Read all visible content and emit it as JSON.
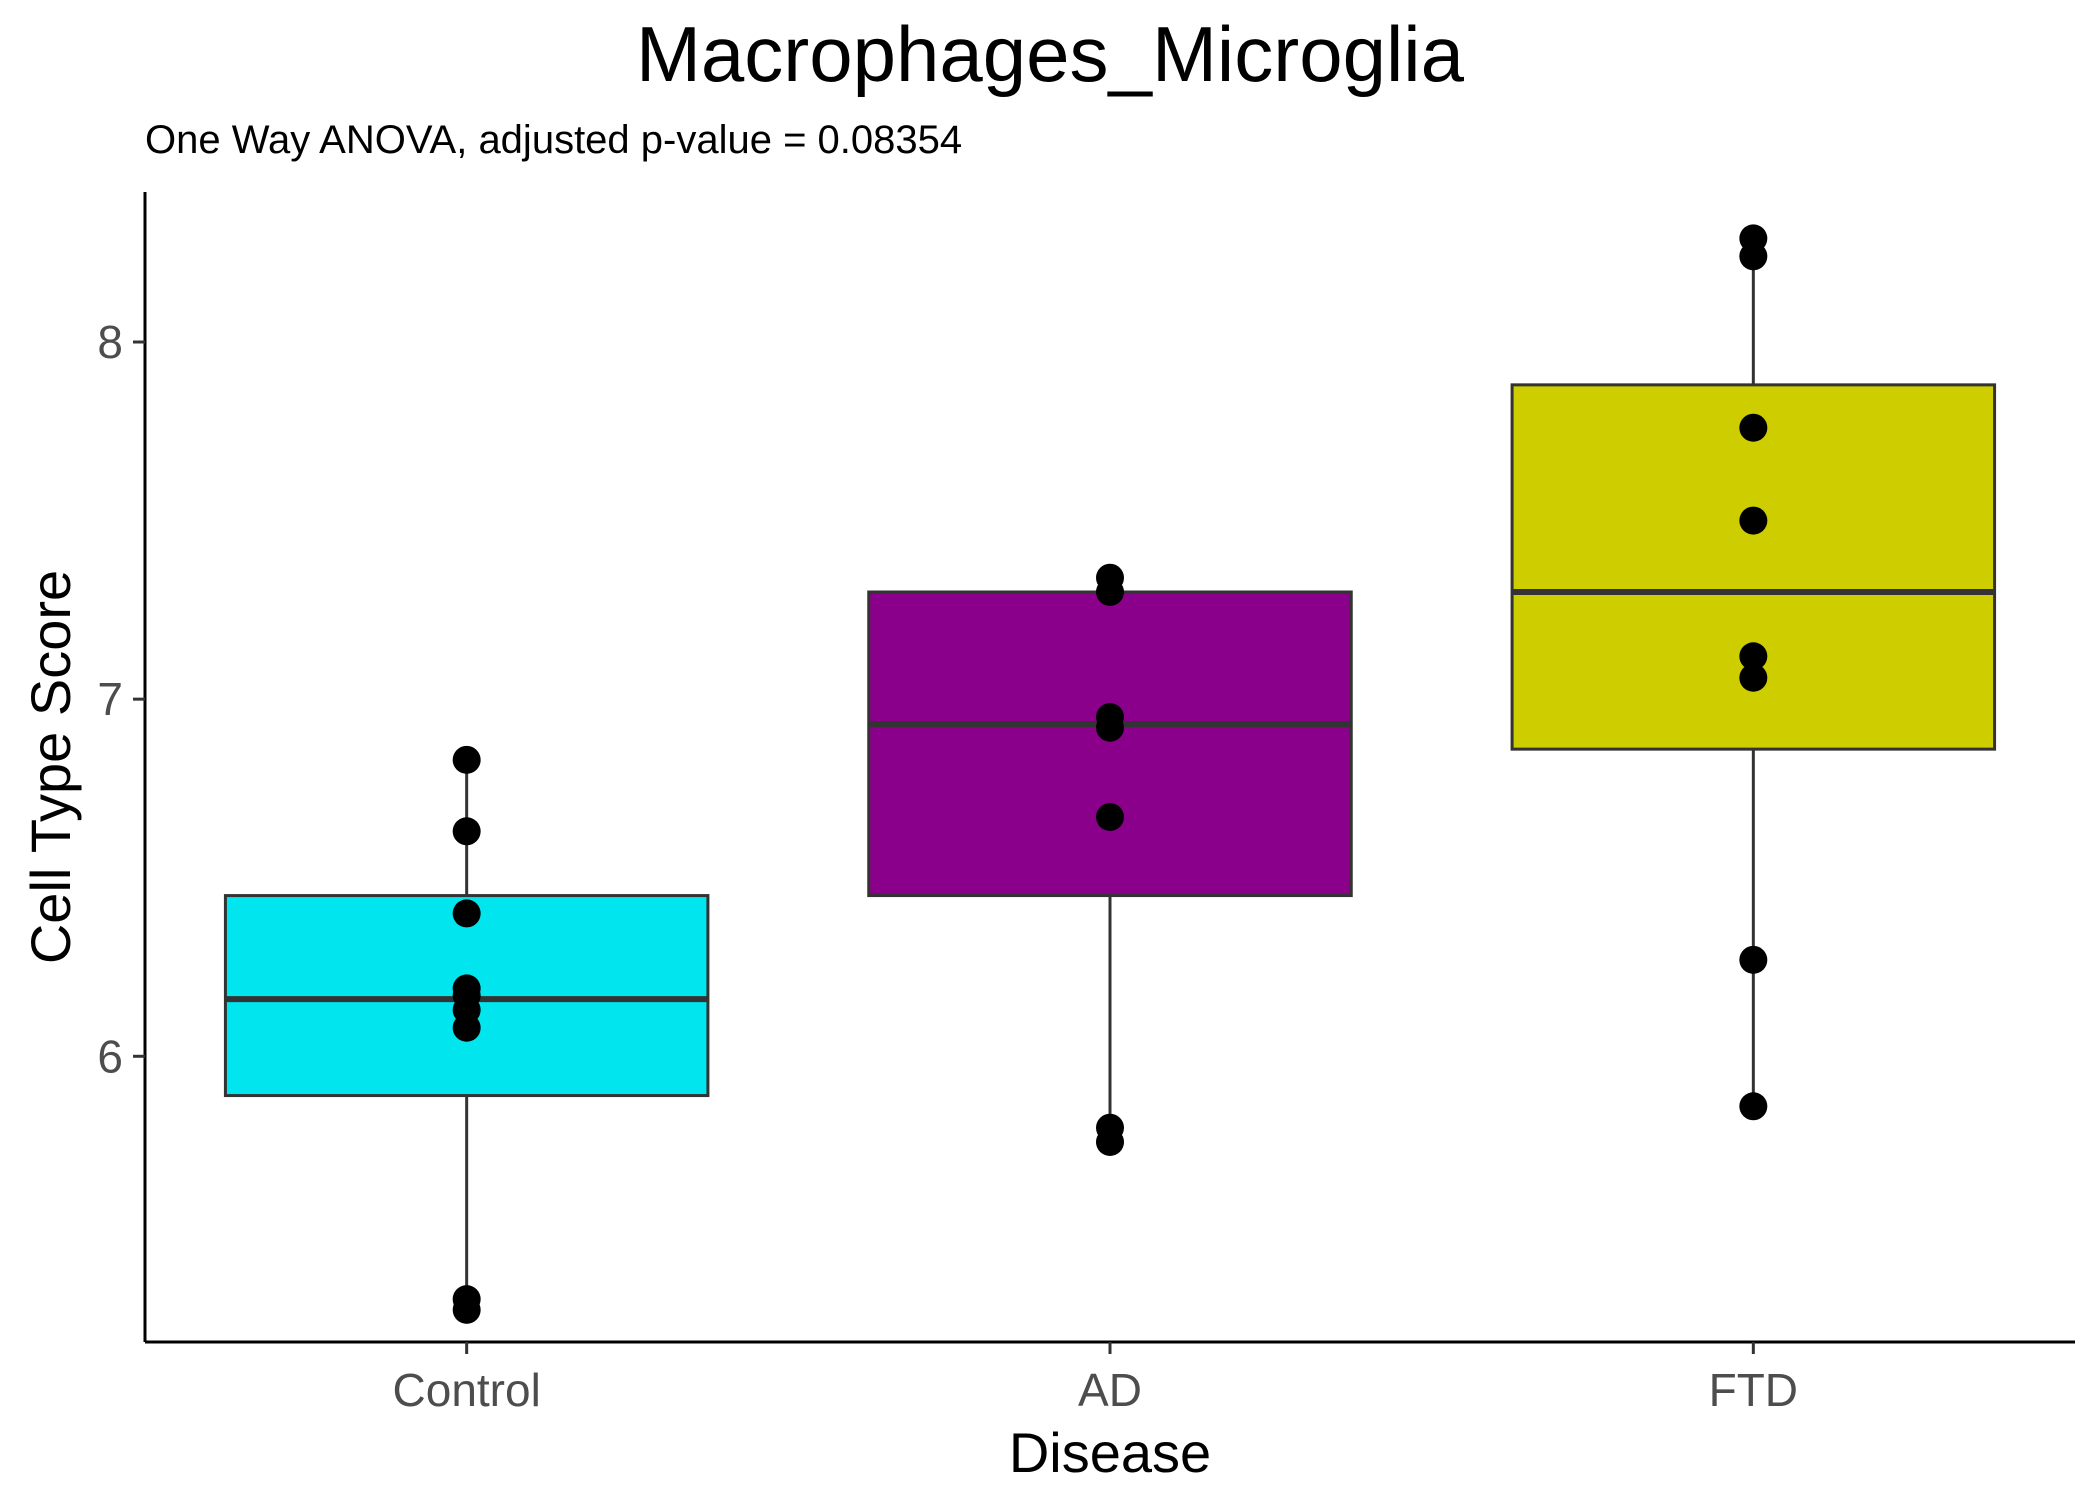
{
  "chart_data": {
    "type": "box",
    "title": "Macrophages_Microglia",
    "subtitle": "One Way ANOVA, adjusted p-value = 0.08354",
    "xlabel": "Disease",
    "ylabel": "Cell Type Score",
    "ylim": [
      5.2,
      8.42
    ],
    "yticks": [
      6,
      7,
      8
    ],
    "grid": false,
    "categories": [
      "Control",
      "AD",
      "FTD"
    ],
    "boxes": [
      {
        "category": "Control",
        "fill": "#00e5ee",
        "q1": 5.89,
        "median": 6.16,
        "q3": 6.45,
        "whisker_low": 5.3,
        "whisker_high": 6.83,
        "points": [
          6.83,
          6.63,
          6.4,
          6.19,
          6.17,
          6.13,
          6.08,
          5.32,
          5.29
        ]
      },
      {
        "category": "AD",
        "fill": "#8b008b",
        "q1": 6.45,
        "median": 6.93,
        "q3": 7.3,
        "whisker_low": 5.76,
        "whisker_high": 7.34,
        "points": [
          7.34,
          7.3,
          6.95,
          6.92,
          6.67,
          5.8,
          5.76
        ]
      },
      {
        "category": "FTD",
        "fill": "#cdcd00",
        "q1": 6.86,
        "median": 7.3,
        "q3": 7.88,
        "whisker_low": 5.86,
        "whisker_high": 8.29,
        "points": [
          8.29,
          8.24,
          7.76,
          7.5,
          7.12,
          7.06,
          6.27,
          5.86
        ]
      }
    ]
  }
}
